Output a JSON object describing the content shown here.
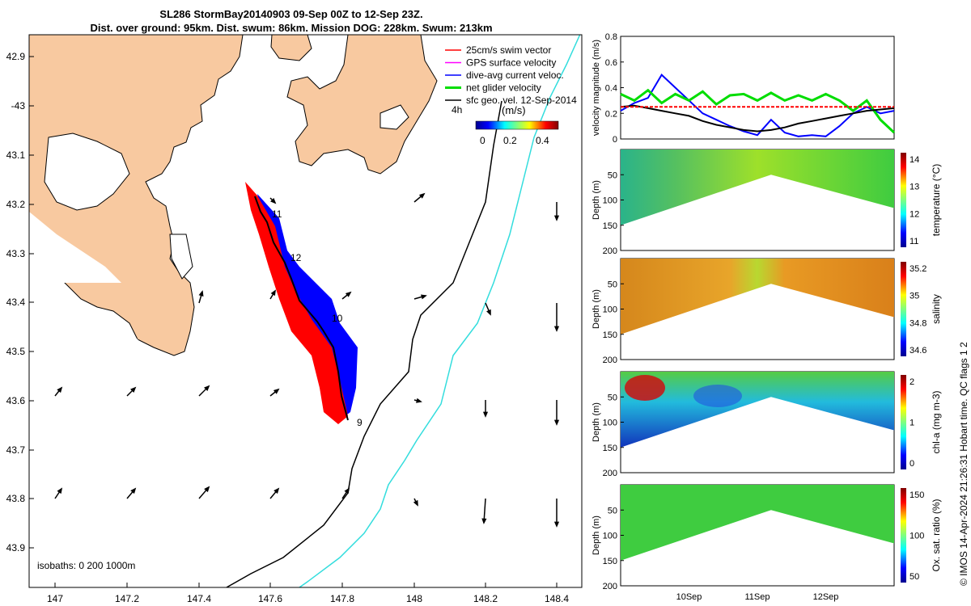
{
  "header": {
    "line1": "SL286 StormBay20140903 09-Sep 00Z to 12-Sep 23Z.",
    "line2": "Dist. over ground: 95km. Dist. swum: 86km. Mission DOG: 228km. Swum: 213km"
  },
  "map": {
    "lon_ticks": [
      "147",
      "147.2",
      "147.4",
      "147.6",
      "147.8",
      "148",
      "148.2",
      "148.4"
    ],
    "lat_ticks": [
      "42.9",
      "-43",
      "43.1",
      "43.2",
      "43.3",
      "43.4",
      "43.5",
      "43.6",
      "43.7",
      "43.8",
      "43.9"
    ],
    "legend": [
      {
        "label": "25cm/s swim vector",
        "color": "#ff0000"
      },
      {
        "label": "GPS surface velocity",
        "color": "#ff00ff"
      },
      {
        "label": "dive-avg current veloc.",
        "color": "#0000ff"
      },
      {
        "label": "net glider velocity",
        "color": "#00dd00"
      },
      {
        "label": "sfc geo. vel. 12-Sep-2014",
        "color": "#000000"
      }
    ],
    "legend_extra": "4h",
    "colorbar_title": "(m/s)",
    "colorbar_ticks": [
      "0",
      "0.2",
      "0.4"
    ],
    "day_labels": [
      "11",
      "12",
      "10",
      "9"
    ],
    "isobath_label": "isobaths: 0   200  1000m",
    "colors": {
      "land": "#f8c9a0",
      "swim": "#ff0000",
      "current": "#0000ff",
      "isobath200": "#000000",
      "isobath1000": "#33dddd"
    }
  },
  "chart_data": [
    {
      "type": "line",
      "ylabel": "velocity magnitude (m/s)",
      "ylim": [
        0,
        0.8
      ],
      "y_ticks": [
        "0",
        "0.2",
        "0.4",
        "0.6",
        "0.8"
      ],
      "x": [
        9.0,
        9.2,
        9.4,
        9.6,
        9.8,
        10.0,
        10.2,
        10.4,
        10.6,
        10.8,
        11.0,
        11.2,
        11.4,
        11.6,
        11.8,
        12.0,
        12.2,
        12.4,
        12.6,
        12.8,
        13.0
      ],
      "series": [
        {
          "color": "#0000ff",
          "values": [
            0.22,
            0.28,
            0.32,
            0.5,
            0.4,
            0.3,
            0.2,
            0.15,
            0.1,
            0.06,
            0.03,
            0.15,
            0.05,
            0.02,
            0.03,
            0.02,
            0.1,
            0.2,
            0.25,
            0.2,
            0.22
          ]
        },
        {
          "color": "#00dd00",
          "values": [
            0.35,
            0.3,
            0.38,
            0.28,
            0.35,
            0.3,
            0.37,
            0.27,
            0.34,
            0.35,
            0.3,
            0.36,
            0.3,
            0.34,
            0.3,
            0.35,
            0.3,
            0.22,
            0.3,
            0.15,
            0.05
          ]
        },
        {
          "color": "#000000",
          "values": [
            0.25,
            0.26,
            0.24,
            0.22,
            0.2,
            0.18,
            0.14,
            0.11,
            0.09,
            0.07,
            0.06,
            0.07,
            0.09,
            0.12,
            0.14,
            0.16,
            0.18,
            0.2,
            0.22,
            0.23,
            0.24
          ]
        },
        {
          "color": "#ff0000",
          "values": [
            0.25,
            0.25,
            0.25,
            0.25,
            0.25,
            0.25,
            0.25,
            0.25,
            0.25,
            0.25,
            0.25,
            0.25,
            0.25,
            0.25,
            0.25,
            0.25,
            0.25,
            0.25,
            0.25,
            0.25,
            0.25
          ]
        }
      ]
    },
    {
      "type": "heatmap",
      "ylabel": "Depth (m)",
      "cbar_label": "temperature (°C)",
      "cbar_ticks": [
        "11",
        "12",
        "13",
        "14"
      ],
      "ylim": [
        200,
        0
      ],
      "y_ticks": [
        "50",
        "100",
        "150",
        "200"
      ]
    },
    {
      "type": "heatmap",
      "ylabel": "Depth (m)",
      "cbar_label": "salinity",
      "cbar_ticks": [
        "34.6",
        "34.8",
        "35",
        "35.2"
      ],
      "ylim": [
        200,
        0
      ],
      "y_ticks": [
        "50",
        "100",
        "150",
        "200"
      ]
    },
    {
      "type": "heatmap",
      "ylabel": "Depth (m)",
      "cbar_label": "chl-a (mg m-3)",
      "cbar_ticks": [
        "0",
        "1",
        "2"
      ],
      "ylim": [
        200,
        0
      ],
      "y_ticks": [
        "50",
        "100",
        "150",
        "200"
      ]
    },
    {
      "type": "heatmap",
      "ylabel": "Depth (m)",
      "cbar_label": "Ox. sat. ratio (%)",
      "cbar_ticks": [
        "50",
        "100",
        "150"
      ],
      "ylim": [
        200,
        0
      ],
      "y_ticks": [
        "50",
        "100",
        "150",
        "200"
      ],
      "x_ticks": [
        "10Sep",
        "11Sep",
        "12Sep"
      ]
    }
  ],
  "footer": "© IMOS 14-Apr-2024 21:26:31 Hobart time. QC flags 1  2"
}
